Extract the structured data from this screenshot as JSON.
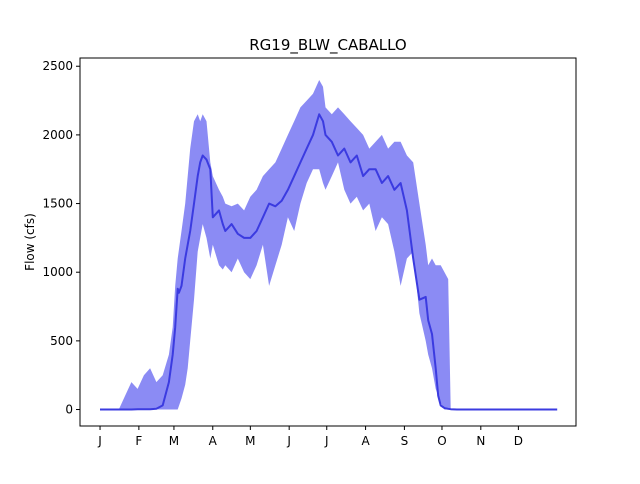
{
  "chart_data": {
    "type": "area",
    "title": "RG19_BLW_CABALLO",
    "xlabel": "",
    "ylabel": "Flow (cfs)",
    "ylim": [
      -120,
      2560
    ],
    "yticks": [
      0,
      500,
      1000,
      1500,
      2000,
      2500
    ],
    "xlim": [
      -16,
      380
    ],
    "xticks": [
      {
        "label": "J",
        "day": 0
      },
      {
        "label": "F",
        "day": 31
      },
      {
        "label": "M",
        "day": 59
      },
      {
        "label": "A",
        "day": 90
      },
      {
        "label": "M",
        "day": 120
      },
      {
        "label": "J",
        "day": 151
      },
      {
        "label": "J",
        "day": 181
      },
      {
        "label": "A",
        "day": 212
      },
      {
        "label": "S",
        "day": 243
      },
      {
        "label": "O",
        "day": 273
      },
      {
        "label": "N",
        "day": 304
      },
      {
        "label": "D",
        "day": 334
      }
    ],
    "grid": false,
    "legend": "none",
    "colors": {
      "band": "#7b7bf2",
      "line": "#3b3be0"
    },
    "series": [
      {
        "role": "range-lower",
        "x": [
          0,
          10,
          20,
          30,
          45,
          55,
          59,
          62,
          65,
          68,
          70,
          72,
          75,
          78,
          82,
          85,
          88,
          90,
          95,
          98,
          100,
          105,
          110,
          115,
          120,
          125,
          130,
          135,
          140,
          145,
          150,
          155,
          160,
          165,
          170,
          175,
          178,
          180,
          185,
          190,
          195,
          200,
          205,
          210,
          215,
          220,
          225,
          230,
          235,
          240,
          245,
          250,
          255,
          260,
          262,
          265,
          268,
          272,
          275,
          278,
          280,
          285,
          295,
          365
        ],
        "y": [
          0,
          0,
          0,
          0,
          0,
          0,
          0,
          0,
          80,
          180,
          300,
          500,
          800,
          1150,
          1350,
          1250,
          1100,
          1200,
          1050,
          1020,
          1050,
          1000,
          1100,
          1000,
          950,
          1050,
          1200,
          900,
          1050,
          1200,
          1400,
          1300,
          1500,
          1650,
          1750,
          1750,
          1650,
          1600,
          1700,
          1800,
          1600,
          1500,
          1550,
          1450,
          1500,
          1300,
          1400,
          1350,
          1150,
          900,
          1100,
          1150,
          700,
          500,
          400,
          300,
          150,
          50,
          0,
          0,
          0,
          0,
          0,
          0
        ]
      },
      {
        "role": "median",
        "x": [
          0,
          10,
          20,
          25,
          30,
          35,
          40,
          45,
          50,
          55,
          58,
          60,
          62,
          63,
          65,
          68,
          70,
          72,
          75,
          78,
          80,
          82,
          85,
          88,
          90,
          95,
          98,
          100,
          105,
          110,
          115,
          120,
          125,
          130,
          135,
          140,
          145,
          150,
          155,
          160,
          165,
          170,
          175,
          178,
          180,
          185,
          190,
          195,
          200,
          205,
          210,
          215,
          220,
          225,
          230,
          235,
          240,
          245,
          250,
          255,
          260,
          262,
          265,
          268,
          270,
          272,
          275,
          278,
          280,
          285,
          295,
          365
        ],
        "y": [
          0,
          0,
          0,
          0,
          2,
          2,
          2,
          5,
          30,
          200,
          400,
          600,
          880,
          850,
          900,
          1100,
          1200,
          1300,
          1500,
          1700,
          1800,
          1850,
          1820,
          1750,
          1400,
          1450,
          1350,
          1300,
          1350,
          1280,
          1250,
          1250,
          1300,
          1400,
          1500,
          1480,
          1520,
          1600,
          1700,
          1800,
          1900,
          2000,
          2150,
          2100,
          2000,
          1950,
          1850,
          1900,
          1800,
          1850,
          1700,
          1750,
          1750,
          1650,
          1700,
          1600,
          1650,
          1450,
          1100,
          800,
          820,
          650,
          550,
          300,
          100,
          30,
          10,
          5,
          2,
          0,
          0,
          0
        ]
      },
      {
        "role": "range-upper",
        "x": [
          0,
          10,
          15,
          20,
          25,
          30,
          35,
          40,
          45,
          50,
          55,
          58,
          60,
          62,
          65,
          68,
          70,
          72,
          75,
          78,
          80,
          82,
          85,
          88,
          90,
          95,
          98,
          100,
          105,
          110,
          115,
          120,
          125,
          130,
          135,
          140,
          145,
          150,
          155,
          160,
          165,
          170,
          175,
          178,
          180,
          185,
          190,
          195,
          200,
          205,
          210,
          215,
          220,
          225,
          230,
          235,
          240,
          245,
          250,
          255,
          260,
          262,
          265,
          268,
          270,
          272,
          275,
          278,
          280,
          285,
          295,
          365
        ],
        "y": [
          0,
          0,
          0,
          100,
          200,
          150,
          250,
          300,
          200,
          250,
          400,
          600,
          900,
          1100,
          1300,
          1500,
          1700,
          1900,
          2100,
          2150,
          2100,
          2150,
          2100,
          1800,
          1700,
          1600,
          1550,
          1500,
          1480,
          1500,
          1450,
          1550,
          1600,
          1700,
          1750,
          1800,
          1900,
          2000,
          2100,
          2200,
          2250,
          2300,
          2400,
          2350,
          2200,
          2150,
          2200,
          2150,
          2100,
          2050,
          2000,
          1900,
          1950,
          2000,
          1900,
          1950,
          1950,
          1850,
          1800,
          1500,
          1200,
          1050,
          1100,
          1050,
          1050,
          1050,
          1000,
          950,
          5,
          0,
          0,
          0
        ]
      }
    ]
  }
}
